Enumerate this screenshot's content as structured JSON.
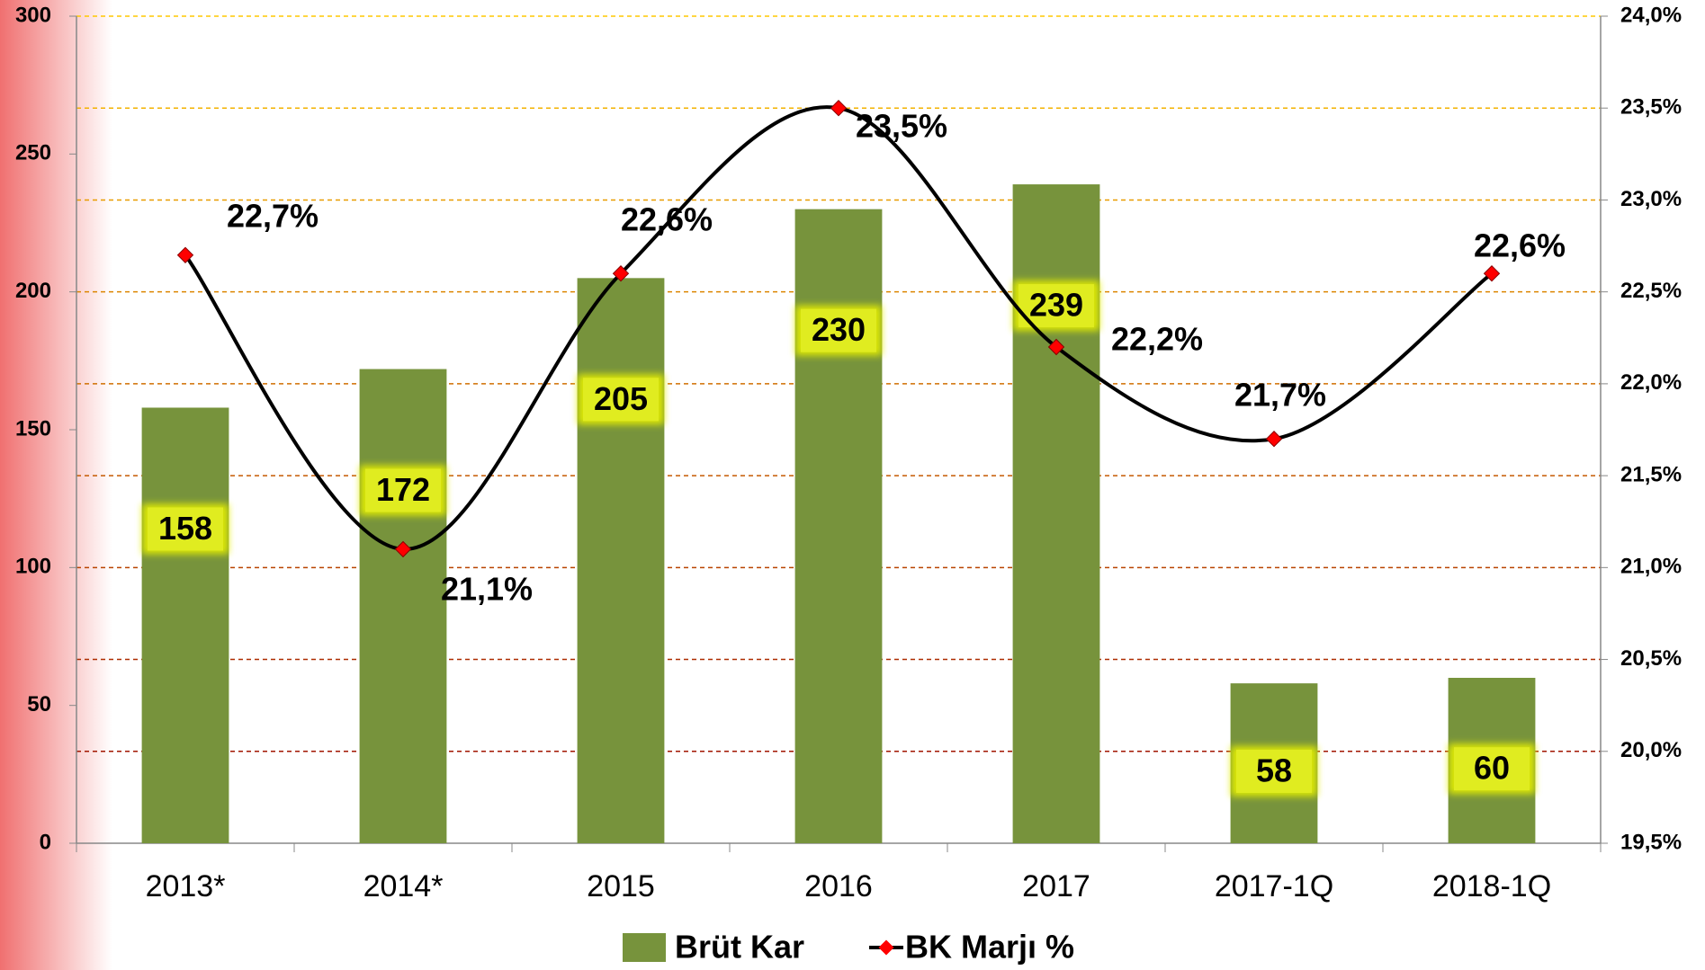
{
  "chart_data": {
    "type": "bar_line",
    "categories": [
      "2013*",
      "2014*",
      "2015",
      "2016",
      "2017",
      "2017-1Q",
      "2018-1Q"
    ],
    "series": [
      {
        "name": "Brüt Kar",
        "type": "bar",
        "color": "#77933c",
        "values": [
          158,
          172,
          205,
          230,
          239,
          58,
          60
        ]
      },
      {
        "name": "BK Marjı %",
        "type": "line",
        "axis": "y2",
        "color": "#000000",
        "marker_color": "#ff0000",
        "values": [
          22.7,
          21.1,
          22.6,
          23.5,
          22.2,
          21.7,
          22.6
        ],
        "value_labels": [
          "22,7%",
          "21,1%",
          "22,6%",
          "23,5%",
          "22,2%",
          "21,7%",
          "22,6%"
        ]
      }
    ],
    "ylim": [
      0,
      300
    ],
    "yticks": [
      0,
      50,
      100,
      150,
      200,
      250,
      300
    ],
    "y2lim": [
      19.5,
      24.0
    ],
    "y2ticks": [
      {
        "value": 19.5,
        "label": "19,5%"
      },
      {
        "value": 20.0,
        "label": "20,0%"
      },
      {
        "value": 20.5,
        "label": "20,5%"
      },
      {
        "value": 21.0,
        "label": "21,0%"
      },
      {
        "value": 21.5,
        "label": "21,5%"
      },
      {
        "value": 22.0,
        "label": "22,0%"
      },
      {
        "value": 22.5,
        "label": "22,5%"
      },
      {
        "value": 23.0,
        "label": "23,0%"
      },
      {
        "value": 23.5,
        "label": "23,5%"
      },
      {
        "value": 24.0,
        "label": "24,0%"
      }
    ],
    "grid": true,
    "legend": "bottom"
  }
}
